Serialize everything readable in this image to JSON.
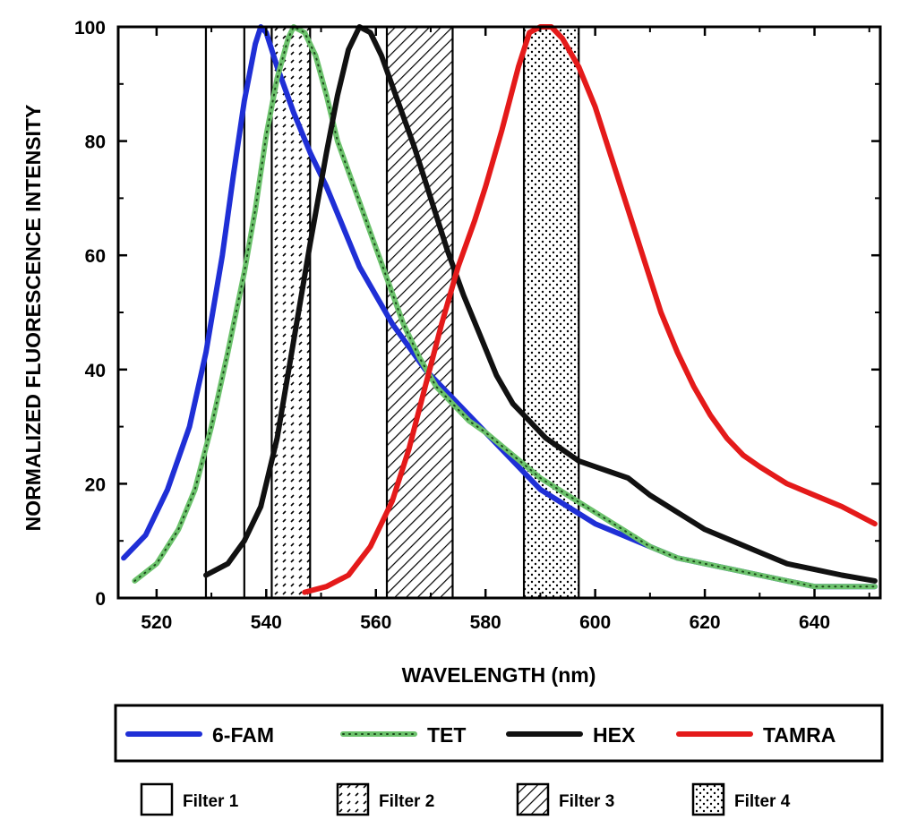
{
  "chart_data": {
    "type": "line",
    "xlabel": "WAVELENGTH (nm)",
    "ylabel": "NORMALIZED FLUORESCENCE INTENSITY",
    "xlim": [
      513,
      652
    ],
    "ylim": [
      0,
      100
    ],
    "xticks": [
      520,
      540,
      560,
      580,
      600,
      620,
      640
    ],
    "yticks": [
      0,
      20,
      40,
      60,
      80,
      100
    ],
    "grid": false,
    "series": [
      {
        "name": "6-FAM",
        "color": "#1f2fd6",
        "style": "solid",
        "points": [
          [
            514,
            7
          ],
          [
            518,
            11
          ],
          [
            522,
            19
          ],
          [
            526,
            30
          ],
          [
            529,
            43
          ],
          [
            532,
            60
          ],
          [
            534,
            74
          ],
          [
            536,
            87
          ],
          [
            538,
            97
          ],
          [
            539,
            100
          ],
          [
            540,
            99
          ],
          [
            542,
            93
          ],
          [
            545,
            85
          ],
          [
            548,
            78
          ],
          [
            551,
            72
          ],
          [
            554,
            65
          ],
          [
            557,
            58
          ],
          [
            560,
            53
          ],
          [
            563,
            48
          ],
          [
            566,
            44
          ],
          [
            569,
            40
          ],
          [
            572,
            37
          ],
          [
            575,
            34
          ],
          [
            580,
            29
          ],
          [
            585,
            24
          ],
          [
            590,
            19
          ],
          [
            595,
            16
          ],
          [
            600,
            13
          ],
          [
            605,
            11
          ],
          [
            610,
            9
          ],
          [
            615,
            7
          ],
          [
            620,
            6
          ],
          [
            625,
            5
          ],
          [
            630,
            4
          ],
          [
            635,
            3
          ],
          [
            640,
            2
          ],
          [
            645,
            2
          ],
          [
            651,
            2
          ]
        ]
      },
      {
        "name": "TET",
        "color": "#6cc26c",
        "style": "dotted-light",
        "points": [
          [
            516,
            3
          ],
          [
            520,
            6
          ],
          [
            524,
            12
          ],
          [
            527,
            19
          ],
          [
            530,
            30
          ],
          [
            533,
            43
          ],
          [
            536,
            57
          ],
          [
            538,
            68
          ],
          [
            540,
            81
          ],
          [
            542,
            91
          ],
          [
            544,
            98
          ],
          [
            545,
            100
          ],
          [
            547,
            99
          ],
          [
            549,
            95
          ],
          [
            551,
            88
          ],
          [
            553,
            80
          ],
          [
            556,
            72
          ],
          [
            559,
            64
          ],
          [
            562,
            56
          ],
          [
            565,
            48
          ],
          [
            568,
            42
          ],
          [
            571,
            37
          ],
          [
            574,
            34
          ],
          [
            577,
            31
          ],
          [
            580,
            29
          ],
          [
            585,
            25
          ],
          [
            590,
            21
          ],
          [
            595,
            18
          ],
          [
            600,
            15
          ],
          [
            605,
            12
          ],
          [
            610,
            9
          ],
          [
            615,
            7
          ],
          [
            620,
            6
          ],
          [
            625,
            5
          ],
          [
            630,
            4
          ],
          [
            635,
            3
          ],
          [
            640,
            2
          ],
          [
            645,
            2
          ],
          [
            651,
            2
          ]
        ]
      },
      {
        "name": "HEX",
        "color": "#111111",
        "style": "solid",
        "points": [
          [
            529,
            4
          ],
          [
            533,
            6
          ],
          [
            536,
            10
          ],
          [
            539,
            16
          ],
          [
            542,
            28
          ],
          [
            545,
            45
          ],
          [
            548,
            62
          ],
          [
            551,
            78
          ],
          [
            553,
            88
          ],
          [
            555,
            96
          ],
          [
            557,
            100
          ],
          [
            559,
            99
          ],
          [
            561,
            95
          ],
          [
            564,
            87
          ],
          [
            567,
            79
          ],
          [
            570,
            70
          ],
          [
            573,
            61
          ],
          [
            576,
            53
          ],
          [
            579,
            46
          ],
          [
            582,
            39
          ],
          [
            585,
            34
          ],
          [
            588,
            31
          ],
          [
            591,
            28
          ],
          [
            594,
            26
          ],
          [
            597,
            24
          ],
          [
            600,
            23
          ],
          [
            603,
            22
          ],
          [
            606,
            21
          ],
          [
            610,
            18
          ],
          [
            615,
            15
          ],
          [
            620,
            12
          ],
          [
            625,
            10
          ],
          [
            630,
            8
          ],
          [
            635,
            6
          ],
          [
            640,
            5
          ],
          [
            645,
            4
          ],
          [
            651,
            3
          ]
        ]
      },
      {
        "name": "TAMRA",
        "color": "#e41a1a",
        "style": "solid",
        "points": [
          [
            547,
            1
          ],
          [
            551,
            2
          ],
          [
            555,
            4
          ],
          [
            559,
            9
          ],
          [
            563,
            17
          ],
          [
            566,
            26
          ],
          [
            569,
            37
          ],
          [
            572,
            48
          ],
          [
            575,
            58
          ],
          [
            578,
            66
          ],
          [
            580,
            72
          ],
          [
            583,
            82
          ],
          [
            586,
            93
          ],
          [
            588,
            99
          ],
          [
            590,
            100
          ],
          [
            592,
            100
          ],
          [
            594,
            98
          ],
          [
            597,
            93
          ],
          [
            600,
            86
          ],
          [
            603,
            77
          ],
          [
            606,
            68
          ],
          [
            609,
            59
          ],
          [
            612,
            50
          ],
          [
            615,
            43
          ],
          [
            618,
            37
          ],
          [
            621,
            32
          ],
          [
            624,
            28
          ],
          [
            627,
            25
          ],
          [
            630,
            23
          ],
          [
            635,
            20
          ],
          [
            640,
            18
          ],
          [
            645,
            16
          ],
          [
            651,
            13
          ]
        ]
      }
    ],
    "filters": [
      {
        "name": "Filter 1",
        "range": [
          529,
          536
        ],
        "pattern": "empty"
      },
      {
        "name": "Filter 2",
        "range": [
          541,
          548
        ],
        "pattern": "dashed"
      },
      {
        "name": "Filter 3",
        "range": [
          562,
          574
        ],
        "pattern": "diagonal"
      },
      {
        "name": "Filter 4",
        "range": [
          587,
          597
        ],
        "pattern": "dotted"
      }
    ]
  },
  "legend": {
    "dyes": [
      "6-FAM",
      "TET",
      "HEX",
      "TAMRA"
    ],
    "filters": [
      "Filter 1",
      "Filter 2",
      "Filter 3",
      "Filter 4"
    ]
  }
}
